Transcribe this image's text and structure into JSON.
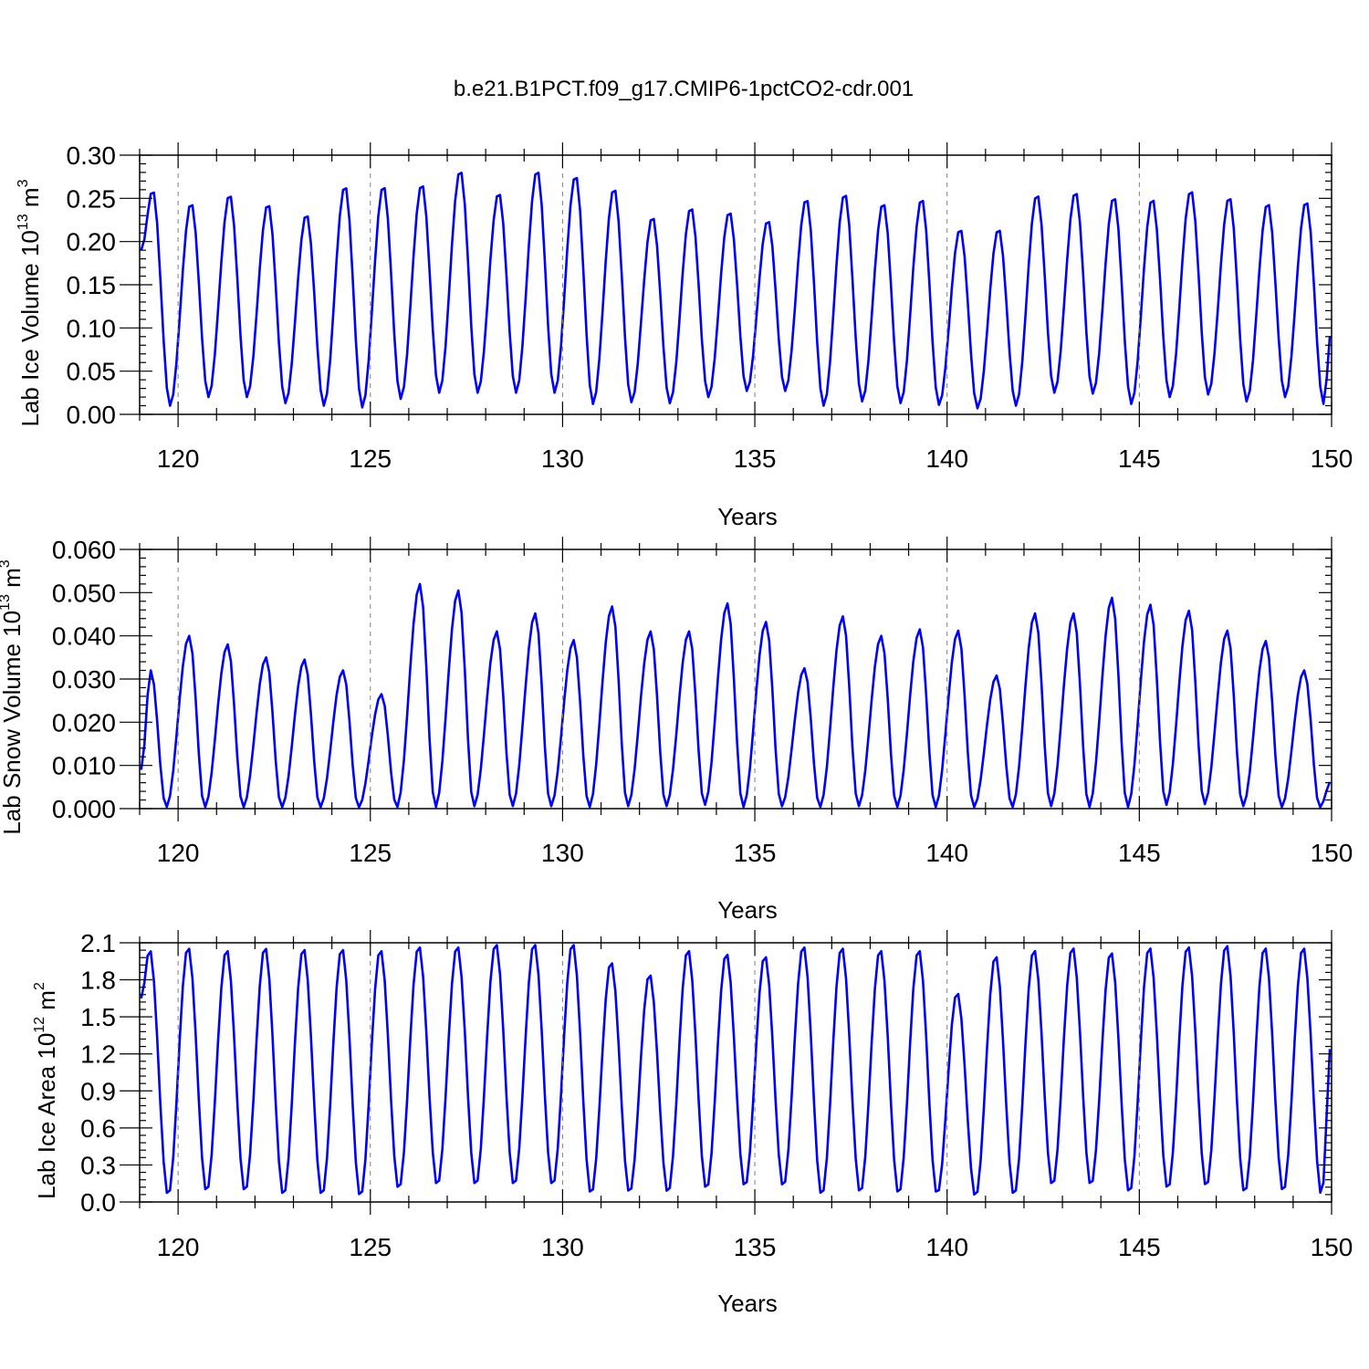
{
  "title": "b.e21.B1PCT.f09_g17.CMIP6-1pctCO2-cdr.001",
  "colors": {
    "line": "#0000ff",
    "axis": "#000000",
    "grid": "#7f7f7f"
  },
  "chart_data": [
    {
      "type": "line",
      "xlabel": "Years",
      "ylabel": {
        "text": "Lab Ice Volume 10",
        "sup": "13",
        "unit": " m",
        "unit_sup": "3"
      },
      "xlim": [
        119,
        150
      ],
      "ylim": [
        0,
        0.3
      ],
      "xticks": [
        120,
        125,
        130,
        135,
        140,
        145,
        150
      ],
      "xtick_labels": [
        "120",
        "125",
        "130",
        "135",
        "140",
        "145",
        "150"
      ],
      "yticks": [
        0,
        0.05,
        0.1,
        0.15,
        0.2,
        0.25,
        0.3
      ],
      "ytick_labels": [
        "0.00",
        "0.05",
        "0.10",
        "0.15",
        "0.20",
        "0.25",
        "0.30"
      ],
      "grid": "vertical dashed at major x ticks",
      "series_profile": {
        "x_start": 119.04,
        "step": 0.08333,
        "peak_offset": 0.3,
        "trough_offset": 0.75,
        "base_start": 0.19,
        "peaks": [
          0.26,
          0.245,
          0.255,
          0.244,
          0.232,
          0.265,
          0.265,
          0.267,
          0.283,
          0.257,
          0.283,
          0.277,
          0.262,
          0.229,
          0.24,
          0.235,
          0.225,
          0.25,
          0.256,
          0.245,
          0.25,
          0.215,
          0.215,
          0.255,
          0.258,
          0.252,
          0.25,
          0.26,
          0.252,
          0.245,
          0.247
        ],
        "troughs": [
          0.01,
          0.02,
          0.02,
          0.013,
          0.01,
          0.008,
          0.018,
          0.025,
          0.025,
          0.025,
          0.025,
          0.012,
          0.014,
          0.013,
          0.02,
          0.027,
          0.027,
          0.01,
          0.015,
          0.013,
          0.011,
          0.007,
          0.01,
          0.025,
          0.024,
          0.012,
          0.02,
          0.023,
          0.015,
          0.02,
          0.012
        ],
        "y_end": 0.1
      }
    },
    {
      "type": "line",
      "xlabel": "Years",
      "ylabel": {
        "text": "Lab Snow Volume 10",
        "sup": "13",
        "unit": " m",
        "unit_sup": "3"
      },
      "xlim": [
        119,
        150
      ],
      "ylim": [
        0,
        0.06
      ],
      "xticks": [
        120,
        125,
        130,
        135,
        140,
        145,
        150
      ],
      "xtick_labels": [
        "120",
        "125",
        "130",
        "135",
        "140",
        "145",
        "150"
      ],
      "yticks": [
        0,
        0.01,
        0.02,
        0.03,
        0.04,
        0.05,
        0.06
      ],
      "ytick_labels": [
        "0.000",
        "0.010",
        "0.020",
        "0.030",
        "0.040",
        "0.050",
        "0.060"
      ],
      "grid": "vertical dashed at major x ticks",
      "series_profile": {
        "x_start": 119.04,
        "step": 0.08333,
        "peak_offset": 0.25,
        "trough_offset": 0.65,
        "base_start": 0.009,
        "peaks": [
          0.032,
          0.04,
          0.038,
          0.035,
          0.0345,
          0.032,
          0.0265,
          0.052,
          0.0505,
          0.041,
          0.0452,
          0.039,
          0.0468,
          0.041,
          0.041,
          0.0475,
          0.0432,
          0.0325,
          0.0445,
          0.04,
          0.0415,
          0.0412,
          0.0308,
          0.0452,
          0.0452,
          0.0488,
          0.0472,
          0.0458,
          0.0412,
          0.0388,
          0.032
        ],
        "troughs": [
          0.0003,
          0.0003,
          0.0003,
          0.0003,
          0.0003,
          0.0003,
          0.0003,
          0.0003,
          0.0005,
          0.0005,
          0.0005,
          0.0003,
          0.0005,
          0.0005,
          0.0008,
          0.0003,
          0.0005,
          0.0003,
          0.0005,
          0.0003,
          0.0003,
          0.0003,
          0.0003,
          0.0005,
          0.0003,
          0.0003,
          0.0008,
          0.001,
          0.0005,
          0.0003,
          0.0003
        ],
        "y_end": 0.0065
      }
    },
    {
      "type": "line",
      "xlabel": "Years",
      "ylabel": {
        "text": "Lab Ice Area 10",
        "sup": "12",
        "unit": " m",
        "unit_sup": "2"
      },
      "xlim": [
        119,
        150
      ],
      "ylim": [
        0,
        2.1
      ],
      "xticks": [
        120,
        125,
        130,
        135,
        140,
        145,
        150
      ],
      "xtick_labels": [
        "120",
        "125",
        "130",
        "135",
        "140",
        "145",
        "150"
      ],
      "yticks": [
        0,
        0.3,
        0.6,
        0.9,
        1.2,
        1.5,
        1.8,
        2.1
      ],
      "ytick_labels": [
        "0.0",
        "0.3",
        "0.6",
        "0.9",
        "1.2",
        "1.5",
        "1.8",
        "2.1"
      ],
      "grid": "vertical dashed at major x ticks",
      "series_profile": {
        "x_start": 119.04,
        "step": 0.08333,
        "peak_offset": 0.22,
        "trough_offset": 0.7,
        "base_start": 1.65,
        "peaks": [
          2.05,
          2.07,
          2.05,
          2.07,
          2.06,
          2.06,
          2.05,
          2.08,
          2.08,
          2.1,
          2.1,
          2.1,
          1.95,
          1.85,
          2.05,
          2.02,
          2.0,
          2.08,
          2.07,
          2.05,
          2.05,
          1.7,
          2.0,
          2.05,
          2.07,
          2.03,
          2.07,
          2.08,
          2.09,
          2.07,
          2.07
        ],
        "troughs": [
          0.05,
          0.08,
          0.08,
          0.05,
          0.05,
          0.04,
          0.1,
          0.13,
          0.13,
          0.13,
          0.13,
          0.06,
          0.07,
          0.07,
          0.1,
          0.12,
          0.12,
          0.05,
          0.07,
          0.06,
          0.06,
          0.04,
          0.05,
          0.13,
          0.13,
          0.07,
          0.1,
          0.12,
          0.07,
          0.08,
          0.05
        ],
        "y_end": 1.33
      }
    }
  ]
}
